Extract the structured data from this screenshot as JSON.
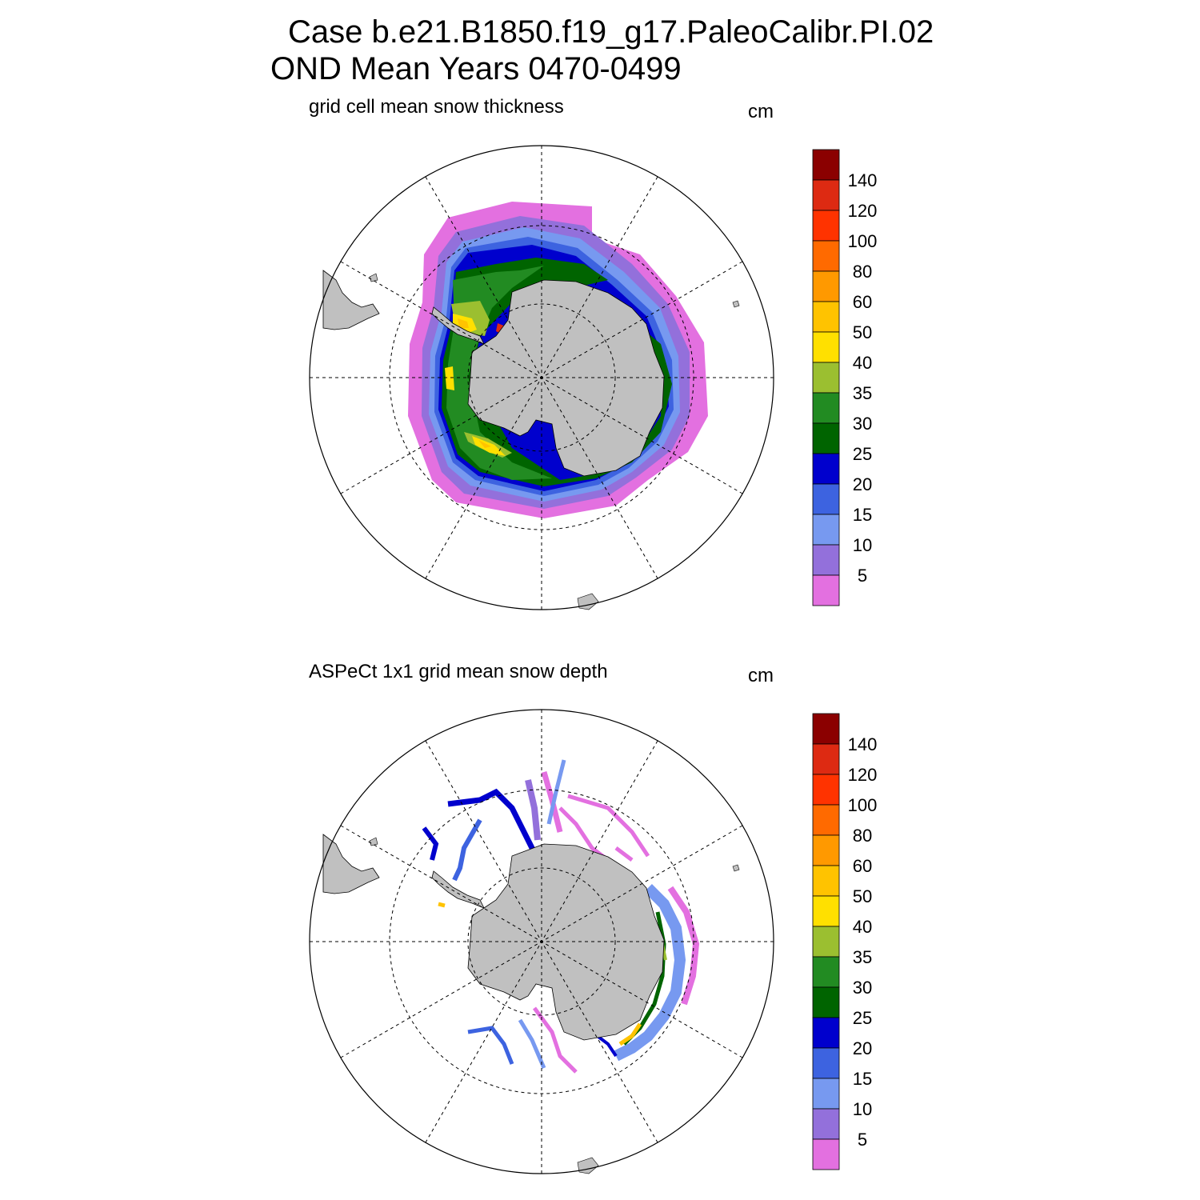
{
  "header": {
    "line1": "Case b.e21.B1850.f19_g17.PaleoCalibr.PI.02",
    "line2": "OND Mean   Years 0470-0499"
  },
  "panels": [
    {
      "id": "model",
      "title": "grid cell mean snow thickness",
      "units": "cm"
    },
    {
      "id": "obs",
      "title": "ASPeCt 1x1 grid mean snow depth",
      "units": "cm"
    }
  ],
  "colorbar": {
    "labels": [
      "140",
      "120",
      "100",
      "80",
      "60",
      "50",
      "40",
      "35",
      "30",
      "25",
      "20",
      "15",
      "10",
      "5"
    ],
    "colors": [
      "#8b0000",
      "#dd2a12",
      "#ff3300",
      "#ff6a00",
      "#ff9900",
      "#ffc300",
      "#ffe000",
      "#9bbf30",
      "#228b22",
      "#006400",
      "#0000cd",
      "#3d63e0",
      "#7799f0",
      "#9370db",
      "#e370e0"
    ]
  },
  "map": {
    "projection": "South polar stereographic",
    "land_color": "#c0c0c0"
  }
}
